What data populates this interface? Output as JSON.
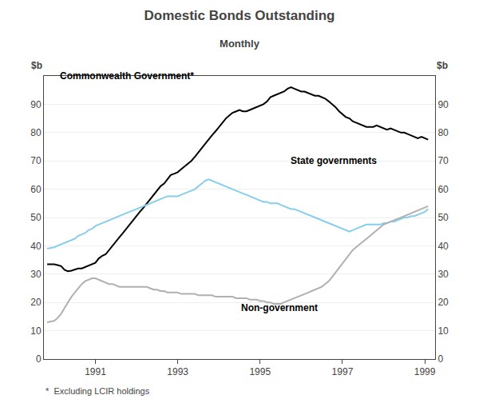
{
  "chart_data": {
    "type": "line",
    "title": "Domestic Bonds Outstanding",
    "subtitle": "Monthly",
    "ylabel": "$b",
    "y2label": "$b",
    "footnote": "*  Excluding LCIR holdings",
    "xlim": [
      1989.75,
      1999.25
    ],
    "xticks": [
      1991,
      1993,
      1995,
      1997,
      1999
    ],
    "ylim": [
      0,
      100
    ],
    "yticks": [
      0,
      10,
      20,
      30,
      40,
      50,
      60,
      70,
      80,
      90
    ],
    "y2lim": [
      0,
      100
    ],
    "y2ticks": [
      0,
      10,
      20,
      30,
      40,
      50,
      60,
      70,
      80,
      90
    ],
    "grid": true,
    "x": [
      1989.83,
      1990.0,
      1990.08,
      1990.17,
      1990.25,
      1990.33,
      1990.42,
      1990.5,
      1990.58,
      1990.67,
      1990.75,
      1990.83,
      1990.92,
      1991.0,
      1991.08,
      1991.17,
      1991.25,
      1991.33,
      1991.42,
      1991.5,
      1991.58,
      1991.67,
      1991.75,
      1991.83,
      1991.92,
      1992.0,
      1992.08,
      1992.17,
      1992.25,
      1992.33,
      1992.42,
      1992.5,
      1992.58,
      1992.67,
      1992.75,
      1992.83,
      1992.92,
      1993.0,
      1993.08,
      1993.17,
      1993.25,
      1993.33,
      1993.42,
      1993.5,
      1993.58,
      1993.67,
      1993.75,
      1993.83,
      1993.92,
      1994.0,
      1994.08,
      1994.17,
      1994.25,
      1994.33,
      1994.42,
      1994.5,
      1994.58,
      1994.67,
      1994.75,
      1994.83,
      1994.92,
      1995.0,
      1995.08,
      1995.17,
      1995.25,
      1995.33,
      1995.42,
      1995.5,
      1995.58,
      1995.67,
      1995.75,
      1995.83,
      1995.92,
      1996.0,
      1996.08,
      1996.17,
      1996.25,
      1996.33,
      1996.42,
      1996.5,
      1996.58,
      1996.67,
      1996.75,
      1996.83,
      1996.92,
      1997.0,
      1997.08,
      1997.17,
      1997.25,
      1997.33,
      1997.42,
      1997.5,
      1997.58,
      1997.67,
      1997.75,
      1997.83,
      1997.92,
      1998.0,
      1998.08,
      1998.17,
      1998.25,
      1998.33,
      1998.42,
      1998.5,
      1998.58,
      1998.67,
      1998.75,
      1998.83,
      1998.92,
      1999.0,
      1999.08
    ],
    "series": [
      {
        "name": "Commonwealth Government*",
        "color": "#000000",
        "values": [
          33.5,
          33.5,
          33.2,
          32.8,
          31.5,
          31.0,
          31.2,
          31.5,
          32.0,
          32.0,
          32.5,
          33.0,
          33.5,
          34.0,
          35.5,
          36.5,
          37.0,
          38.5,
          40.0,
          41.5,
          43.0,
          44.5,
          46.0,
          47.5,
          49.0,
          50.5,
          52.0,
          53.5,
          55.0,
          56.5,
          58.0,
          59.5,
          61.0,
          62.0,
          63.5,
          65.0,
          65.5,
          66.0,
          67.0,
          68.0,
          69.0,
          70.0,
          71.5,
          73.0,
          74.5,
          76.0,
          77.5,
          79.0,
          80.5,
          82.0,
          83.5,
          85.0,
          86.0,
          87.0,
          87.5,
          88.0,
          87.5,
          87.5,
          88.0,
          88.5,
          89.0,
          89.5,
          90.0,
          91.0,
          92.5,
          93.0,
          93.5,
          94.0,
          94.5,
          95.5,
          96.0,
          95.5,
          95.0,
          94.5,
          94.5,
          94.0,
          93.5,
          93.0,
          93.0,
          92.5,
          92.0,
          91.0,
          90.0,
          89.0,
          87.5,
          86.5,
          85.5,
          85.0,
          84.0,
          83.5,
          83.0,
          82.5,
          82.0,
          82.0,
          82.0,
          82.5,
          82.0,
          81.5,
          81.0,
          81.5,
          81.0,
          80.5,
          80.0,
          80.0,
          79.5,
          79.0,
          78.5,
          78.0,
          78.5,
          78.0,
          77.5
        ]
      },
      {
        "name": "State governments",
        "color": "#87ceeb",
        "values": [
          39.0,
          39.5,
          40.0,
          40.5,
          41.0,
          41.5,
          42.0,
          42.5,
          43.5,
          44.0,
          44.5,
          45.5,
          46.0,
          47.0,
          47.5,
          48.0,
          48.5,
          49.0,
          49.5,
          50.0,
          50.5,
          51.0,
          51.5,
          52.0,
          52.5,
          53.0,
          53.5,
          54.0,
          54.5,
          55.0,
          55.5,
          56.0,
          56.5,
          57.0,
          57.5,
          57.5,
          57.5,
          57.5,
          58.0,
          58.5,
          59.0,
          59.5,
          60.0,
          61.0,
          62.0,
          63.0,
          63.5,
          63.0,
          62.5,
          62.0,
          61.5,
          61.0,
          60.5,
          60.0,
          59.5,
          59.0,
          58.5,
          58.0,
          57.5,
          57.0,
          56.5,
          56.0,
          55.5,
          55.5,
          55.0,
          55.0,
          55.0,
          54.5,
          54.0,
          53.5,
          53.0,
          53.0,
          52.5,
          52.0,
          51.5,
          51.0,
          50.5,
          50.0,
          49.5,
          49.0,
          48.5,
          48.0,
          47.5,
          47.0,
          46.5,
          46.0,
          45.5,
          45.0,
          45.5,
          46.0,
          46.5,
          47.0,
          47.5,
          47.5,
          47.5,
          47.5,
          47.5,
          48.0,
          48.0,
          48.5,
          48.5,
          49.0,
          49.5,
          50.0,
          50.0,
          50.5,
          50.5,
          51.0,
          51.5,
          52.0,
          53.0
        ]
      },
      {
        "name": "Non-government",
        "color": "#b0b0b0",
        "values": [
          13.0,
          13.5,
          14.5,
          16.0,
          18.0,
          20.0,
          22.0,
          23.5,
          25.0,
          26.5,
          27.5,
          28.0,
          28.5,
          28.5,
          28.0,
          27.5,
          27.0,
          26.5,
          26.5,
          26.0,
          25.5,
          25.5,
          25.5,
          25.5,
          25.5,
          25.5,
          25.5,
          25.5,
          25.5,
          25.0,
          24.5,
          24.5,
          24.0,
          24.0,
          23.5,
          23.5,
          23.5,
          23.5,
          23.0,
          23.0,
          23.0,
          23.0,
          23.0,
          22.5,
          22.5,
          22.5,
          22.5,
          22.5,
          22.0,
          22.0,
          22.0,
          22.0,
          22.0,
          22.0,
          21.5,
          21.5,
          21.5,
          21.5,
          21.0,
          21.0,
          21.0,
          20.5,
          20.5,
          20.0,
          20.0,
          19.5,
          19.5,
          19.5,
          20.0,
          20.5,
          21.0,
          21.5,
          22.0,
          22.5,
          23.0,
          23.5,
          24.0,
          24.5,
          25.0,
          25.5,
          26.5,
          27.5,
          29.0,
          30.5,
          32.5,
          34.0,
          35.5,
          37.0,
          38.5,
          39.5,
          40.5,
          41.5,
          42.5,
          43.5,
          44.5,
          45.5,
          46.5,
          47.5,
          48.0,
          48.5,
          49.0,
          49.5,
          50.0,
          50.5,
          51.0,
          51.5,
          52.0,
          52.5,
          53.0,
          53.5,
          54.0
        ]
      }
    ],
    "annotations": [
      {
        "text": "Commonwealth Government*",
        "x": 1990.1,
        "y": 97.5
      },
      {
        "text": "State governments",
        "x": 1995.7,
        "y": 67.5
      },
      {
        "text": "Non-government",
        "x": 1994.5,
        "y": 15.5
      }
    ]
  }
}
